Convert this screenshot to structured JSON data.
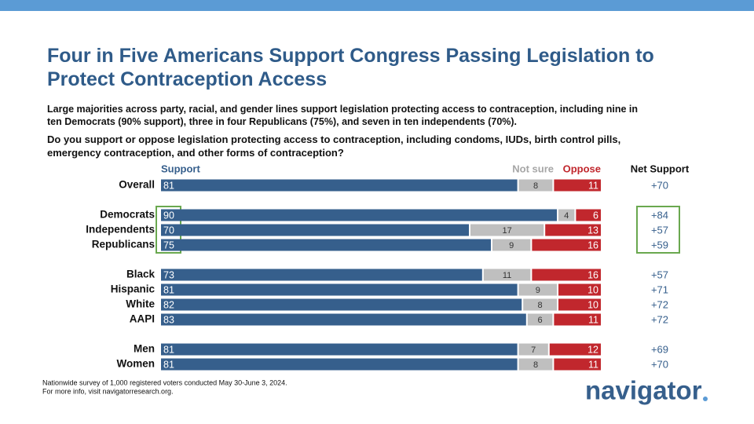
{
  "chart_data": {
    "type": "stacked-bar",
    "title": "Four in Five Americans Support Congress Passing Legislation to Protect Contraception Access",
    "subtitle": "Large majorities across party, racial, and gender lines support legislation protecting access to contraception, including nine in ten Democrats (90% support), three in four Republicans (75%), and seven in ten independents (70%).",
    "question": "Do you support or oppose legislation protecting access to contraception, including condoms, IUDs, birth control pills, emergency contraception, and other forms of contraception?",
    "categories": [
      "Overall",
      null,
      "Democrats",
      "Independents",
      "Republicans",
      null,
      "Black",
      "Hispanic",
      "White",
      "AAPI",
      null,
      "Men",
      "Women"
    ],
    "xlim": [
      0,
      100
    ],
    "series": [
      {
        "name": "Support",
        "color": "#365f8c",
        "values": [
          81,
          null,
          90,
          70,
          75,
          null,
          73,
          81,
          82,
          83,
          null,
          81,
          81
        ]
      },
      {
        "name": "Not sure",
        "color": "#bfbfbf",
        "values": [
          8,
          null,
          4,
          17,
          9,
          null,
          11,
          9,
          8,
          6,
          null,
          7,
          8
        ]
      },
      {
        "name": "Oppose",
        "color": "#c1272d",
        "values": [
          11,
          null,
          6,
          13,
          16,
          null,
          16,
          10,
          10,
          11,
          null,
          12,
          11
        ]
      }
    ],
    "net_support": {
      "name": "Net Support",
      "values": [
        70,
        null,
        84,
        57,
        59,
        null,
        57,
        71,
        72,
        72,
        null,
        69,
        70
      ],
      "value_labels": [
        "+70",
        null,
        "+84",
        "+57",
        "+59",
        null,
        "+57",
        "+71",
        "+72",
        "+72",
        null,
        "+69",
        "+70"
      ]
    },
    "footnote": [
      "Nationwide survey of 1,000 registered voters conducted May 30-June 3, 2024.",
      "For more info, visit navigatorresearch.org."
    ],
    "logo": "navigator"
  }
}
